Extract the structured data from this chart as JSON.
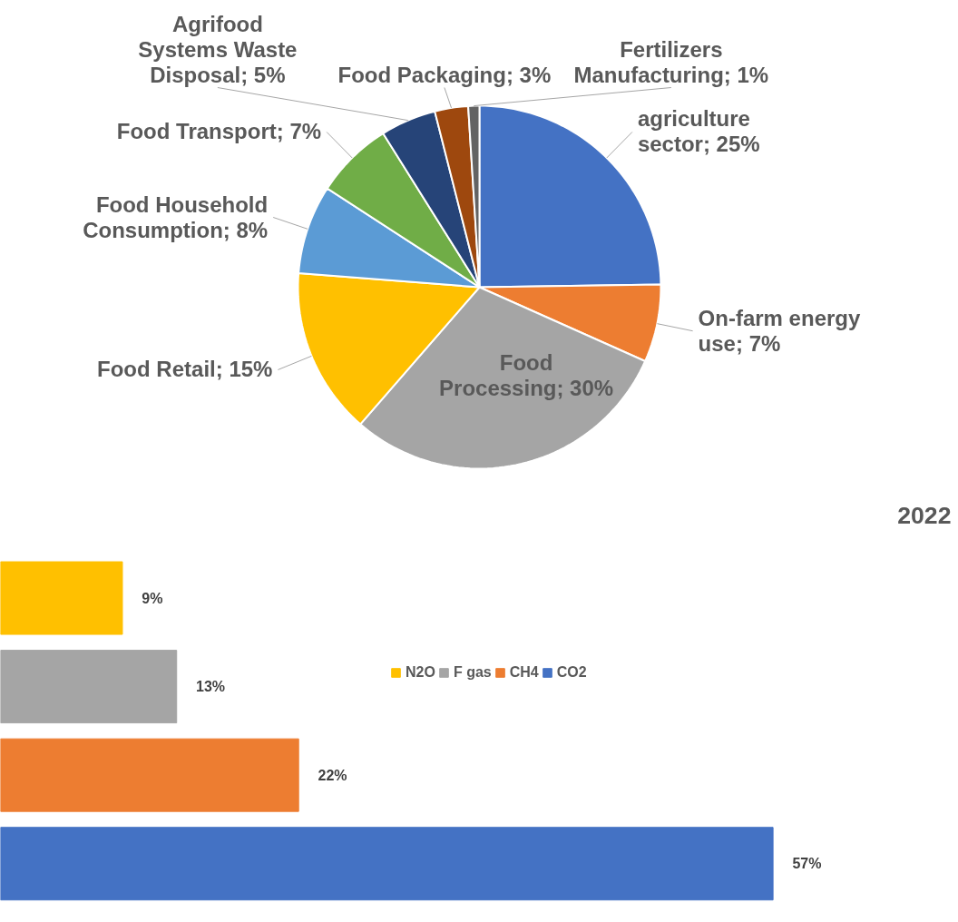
{
  "chart_data": [
    {
      "type": "pie",
      "categories": [
        "agriculture sector",
        "On-farm energy use",
        "Food Processing",
        "Food Retail",
        "Food Household Consumption",
        "Food Transport",
        "Agrifood Systems Waste Disposal",
        "Food Packaging",
        "Fertilizers Manufacturing"
      ],
      "values": [
        25,
        7,
        30,
        15,
        8,
        7,
        5,
        3,
        1
      ],
      "value_labels": [
        "25%",
        "7%",
        "30%",
        "15%",
        "8%",
        "7%",
        "5%",
        "3%",
        "1%"
      ],
      "colors": [
        "#4472c4",
        "#ed7d31",
        "#a5a5a5",
        "#ffc000",
        "#5b9bd5",
        "#70ad47",
        "#264478",
        "#9e480e",
        "#636363"
      ],
      "annotations": [
        "2022"
      ]
    },
    {
      "type": "bar",
      "orientation": "horizontal",
      "categories": [
        null
      ],
      "tick_labels": false,
      "legend": "right",
      "series": [
        {
          "name": "N2O",
          "color": "#ffc000",
          "values": [
            9
          ],
          "value_labels": [
            "9%"
          ]
        },
        {
          "name": "F gas",
          "color": "#a5a5a5",
          "values": [
            13
          ],
          "value_labels": [
            "13%"
          ]
        },
        {
          "name": "CH4",
          "color": "#ed7d31",
          "values": [
            22
          ],
          "value_labels": [
            "22%"
          ]
        },
        {
          "name": "CO2",
          "color": "#4472c4",
          "values": [
            57
          ],
          "value_labels": [
            "57%"
          ]
        }
      ]
    }
  ]
}
